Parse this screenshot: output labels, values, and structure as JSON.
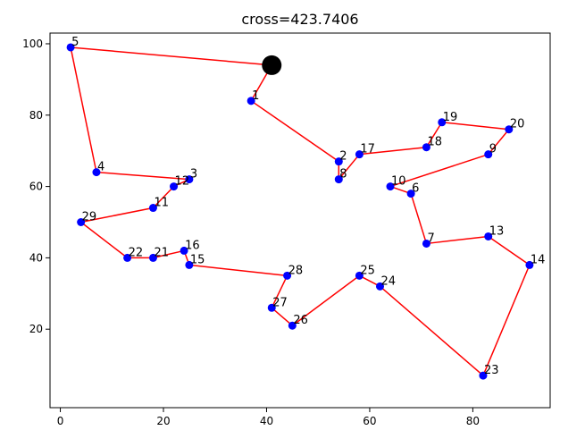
{
  "chart_data": {
    "type": "line",
    "title": "cross=423.7406",
    "xlim": [
      -2,
      95
    ],
    "ylim": [
      -2,
      103
    ],
    "xticks": [
      0,
      20,
      40,
      60,
      80
    ],
    "yticks": [
      20,
      40,
      60,
      80,
      100
    ],
    "grid": false,
    "line_color": "#ff0000",
    "marker_color": "#0000ff",
    "start_marker_color": "#000000",
    "start": [
      41,
      94
    ],
    "route": [
      {
        "label": "",
        "x": 41,
        "y": 94
      },
      {
        "label": "1",
        "x": 37,
        "y": 84
      },
      {
        "label": "2",
        "x": 54,
        "y": 67
      },
      {
        "label": "8",
        "x": 54,
        "y": 62
      },
      {
        "label": "17",
        "x": 58,
        "y": 69
      },
      {
        "label": "18",
        "x": 71,
        "y": 71
      },
      {
        "label": "19",
        "x": 74,
        "y": 78
      },
      {
        "label": "20",
        "x": 87,
        "y": 76
      },
      {
        "label": "9",
        "x": 83,
        "y": 69
      },
      {
        "label": "10",
        "x": 64,
        "y": 60
      },
      {
        "label": "6",
        "x": 68,
        "y": 58
      },
      {
        "label": "7",
        "x": 71,
        "y": 44
      },
      {
        "label": "13",
        "x": 83,
        "y": 46
      },
      {
        "label": "14",
        "x": 91,
        "y": 38
      },
      {
        "label": "23",
        "x": 82,
        "y": 7
      },
      {
        "label": "24",
        "x": 62,
        "y": 32
      },
      {
        "label": "25",
        "x": 58,
        "y": 35
      },
      {
        "label": "26",
        "x": 45,
        "y": 21
      },
      {
        "label": "27",
        "x": 41,
        "y": 26
      },
      {
        "label": "28",
        "x": 44,
        "y": 35
      },
      {
        "label": "15",
        "x": 25,
        "y": 38
      },
      {
        "label": "16",
        "x": 24,
        "y": 42
      },
      {
        "label": "21",
        "x": 18,
        "y": 40
      },
      {
        "label": "22",
        "x": 13,
        "y": 40
      },
      {
        "label": "29",
        "x": 4,
        "y": 50
      },
      {
        "label": "11",
        "x": 18,
        "y": 54
      },
      {
        "label": "12",
        "x": 22,
        "y": 60
      },
      {
        "label": "3",
        "x": 25,
        "y": 62
      },
      {
        "label": "4",
        "x": 7,
        "y": 64
      },
      {
        "label": "5",
        "x": 2,
        "y": 99
      },
      {
        "label": "",
        "x": 41,
        "y": 94
      }
    ]
  }
}
